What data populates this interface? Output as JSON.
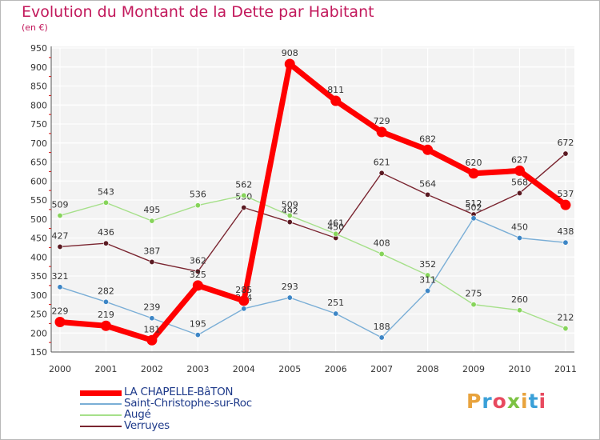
{
  "title": "Evolution du Montant de la Dette par Habitant",
  "subtitle": "(en €)",
  "logo": {
    "text": "Proxiti",
    "colors": [
      "#e8a33d",
      "#3aa0d8",
      "#e84a5f",
      "#7cc242",
      "#e8a33d",
      "#3aa0d8",
      "#e84a5f"
    ]
  },
  "chart_data": {
    "type": "line",
    "x": [
      "2000",
      "2001",
      "2002",
      "2003",
      "2004",
      "2005",
      "2006",
      "2007",
      "2008",
      "2009",
      "2010",
      "2011"
    ],
    "ylim": [
      150,
      950
    ],
    "yticks": [
      150,
      200,
      250,
      300,
      350,
      400,
      450,
      500,
      550,
      600,
      650,
      700,
      750,
      800,
      850,
      900,
      950
    ],
    "grid": true,
    "legend_position": "bottom-left",
    "series": [
      {
        "name": "Verruyes",
        "color": "#7a2530",
        "marker": "#5a1a22",
        "width": 1.4,
        "values": [
          427,
          436,
          387,
          362,
          530,
          492,
          450,
          621,
          564,
          512,
          568,
          672
        ]
      },
      {
        "name": "Augé",
        "color": "#a6e08a",
        "marker": "#86d45a",
        "width": 1.4,
        "values": [
          509,
          543,
          495,
          536,
          562,
          509,
          461,
          408,
          352,
          275,
          260,
          212
        ]
      },
      {
        "name": "Saint-Christophe-sur-Roc",
        "color": "#7aaed6",
        "marker": "#3d86c6",
        "width": 1.4,
        "values": [
          321,
          282,
          239,
          195,
          264,
          293,
          251,
          188,
          311,
          502,
          450,
          438
        ]
      },
      {
        "name": "LA CHAPELLE-BâTON",
        "color": "#ff0000",
        "marker": "#ff0000",
        "width": 7,
        "values": [
          229,
          219,
          181,
          325,
          285,
          908,
          811,
          729,
          682,
          620,
          627,
          537
        ]
      }
    ],
    "legend_order": [
      "LA CHAPELLE-BâTON",
      "Saint-Christophe-sur-Roc",
      "Augé",
      "Verruyes"
    ]
  }
}
